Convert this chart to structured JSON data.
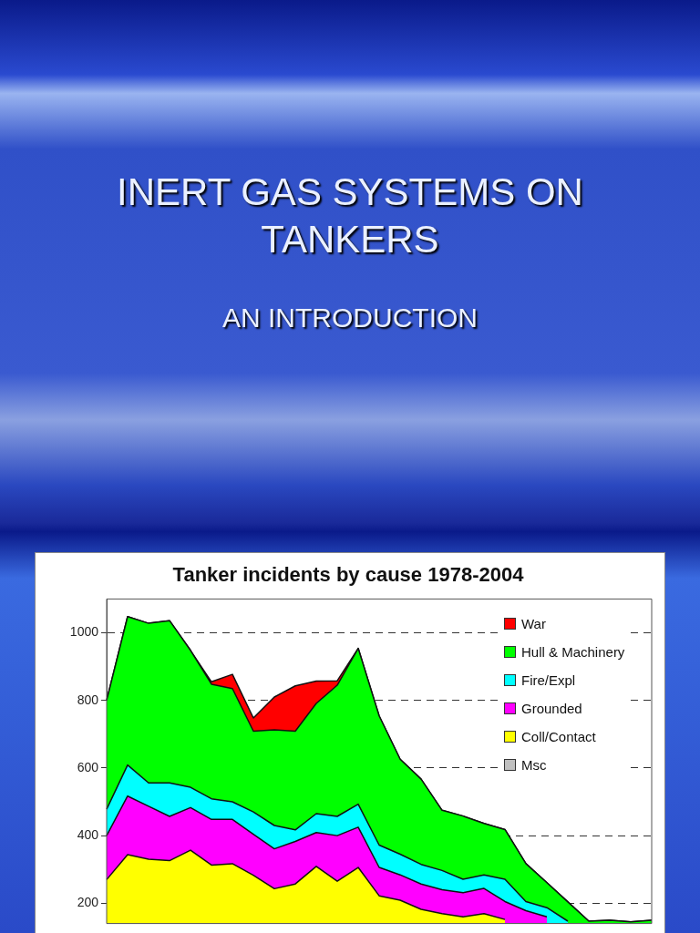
{
  "chart_data": {
    "type": "area",
    "title": "Tanker incidents by cause 1978-2004",
    "annotations": [
      "INERT GAS SYSTEMS ON TANKERS",
      "AN INTRODUCTION"
    ],
    "categories": [
      null,
      null,
      null,
      null,
      null,
      null,
      null,
      null,
      null,
      null,
      null,
      null,
      null,
      null,
      null,
      null,
      null,
      null,
      null,
      null,
      null,
      null,
      null,
      null,
      null,
      null,
      null
    ],
    "series": [
      {
        "name": "Msc",
        "color": "#c0c0c0",
        "values": [
          null,
          null,
          null,
          null,
          null,
          null,
          null,
          null,
          null,
          null,
          null,
          null,
          null,
          null,
          null,
          null,
          null,
          null,
          null,
          null,
          null,
          null,
          null,
          null,
          null,
          null,
          null
        ]
      },
      {
        "name": "Coll/Contact",
        "color": "#ffff00",
        "values": [
          270,
          344,
          330,
          326,
          357,
          313,
          317,
          283,
          243,
          257,
          309,
          265,
          306,
          222,
          209,
          182,
          169,
          160,
          169,
          152,
          null,
          null,
          null,
          null,
          null,
          null,
          null
        ]
      },
      {
        "name": "Grounded",
        "color": "#ff00ff",
        "values": [
          400,
          517,
          487,
          457,
          483,
          448,
          448,
          404,
          361,
          383,
          409,
          400,
          425,
          306,
          284,
          257,
          240,
          231,
          244,
          205,
          178,
          160,
          null,
          null,
          null,
          null,
          null
        ]
      },
      {
        "name": "Fire/Expl",
        "color": "#00ffff",
        "values": [
          478,
          609,
          556,
          556,
          543,
          509,
          500,
          470,
          430,
          417,
          465,
          457,
          493,
          372,
          345,
          315,
          297,
          271,
          284,
          271,
          205,
          187,
          147,
          null,
          null,
          null,
          null
        ]
      },
      {
        "name": "Hull & Machinery",
        "color": "#00ff00",
        "values": [
          800,
          1048,
          1028,
          1036,
          948,
          848,
          835,
          709,
          713,
          709,
          791,
          845,
          954,
          754,
          626,
          567,
          475,
          458,
          436,
          418,
          317,
          261,
          204,
          147,
          150,
          145,
          150
        ]
      },
      {
        "name": "War",
        "color": "#ff0000",
        "values": [
          800,
          1048,
          1028,
          1036,
          948,
          855,
          877,
          748,
          810,
          843,
          857,
          858,
          954,
          754,
          626,
          567,
          475,
          458,
          436,
          418,
          317,
          261,
          204,
          147,
          150,
          145,
          150
        ]
      }
    ],
    "ylim": [
      140,
      1100
    ],
    "yticks": [
      200,
      400,
      600,
      800,
      1000
    ],
    "grid": "y",
    "legend": "top right"
  }
}
